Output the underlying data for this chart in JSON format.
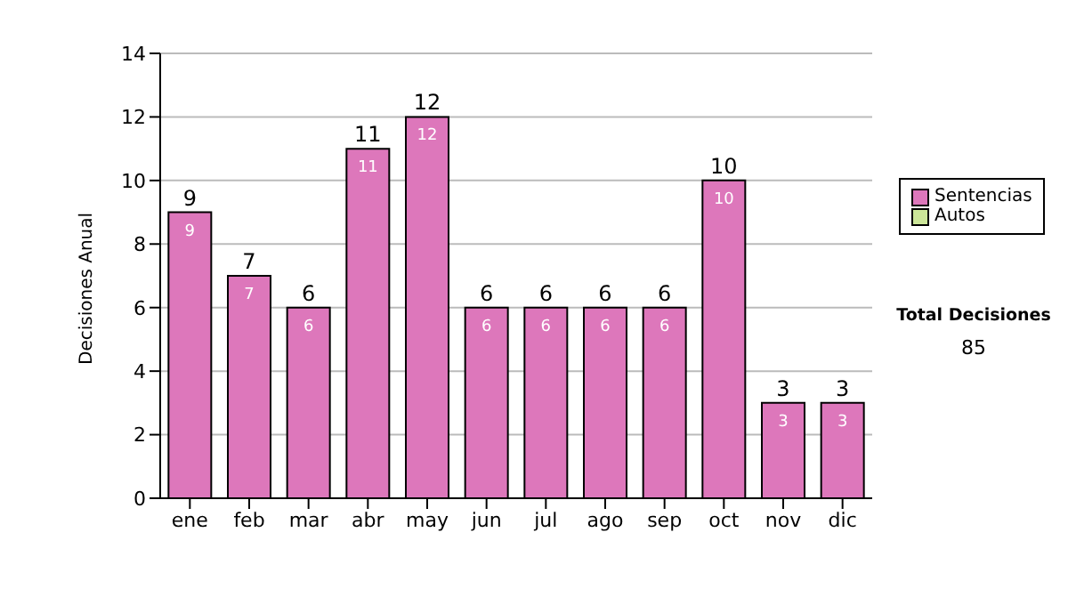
{
  "chart_data": {
    "type": "bar",
    "ylabel": "Decisiones Anual",
    "categories": [
      "ene",
      "feb",
      "mar",
      "abr",
      "may",
      "jun",
      "jul",
      "ago",
      "sep",
      "oct",
      "nov",
      "dic"
    ],
    "series": [
      {
        "name": "Sentencias",
        "color": "#dd77bb",
        "values": [
          9,
          7,
          6,
          11,
          12,
          6,
          6,
          6,
          6,
          10,
          3,
          3
        ],
        "value_labels": [
          "9",
          "7",
          "6",
          "11",
          "12",
          "6",
          "6",
          "6",
          "6",
          "10",
          "3",
          "3"
        ]
      },
      {
        "name": "Autos",
        "color": "#cce699",
        "values": [
          0,
          0,
          0,
          0,
          0,
          0,
          0,
          0,
          0,
          0,
          0,
          0
        ]
      }
    ],
    "stacked": true,
    "totals": [
      "9",
      "7",
      "6",
      "11",
      "12",
      "6",
      "6",
      "6",
      "6",
      "10",
      "3",
      "3"
    ],
    "ylim": [
      0,
      14
    ],
    "yticks": [
      0,
      2,
      4,
      6,
      8,
      10,
      12,
      14
    ],
    "grid": "y",
    "legend": "right",
    "annotations": [
      "Total Decisiones",
      "85"
    ]
  }
}
